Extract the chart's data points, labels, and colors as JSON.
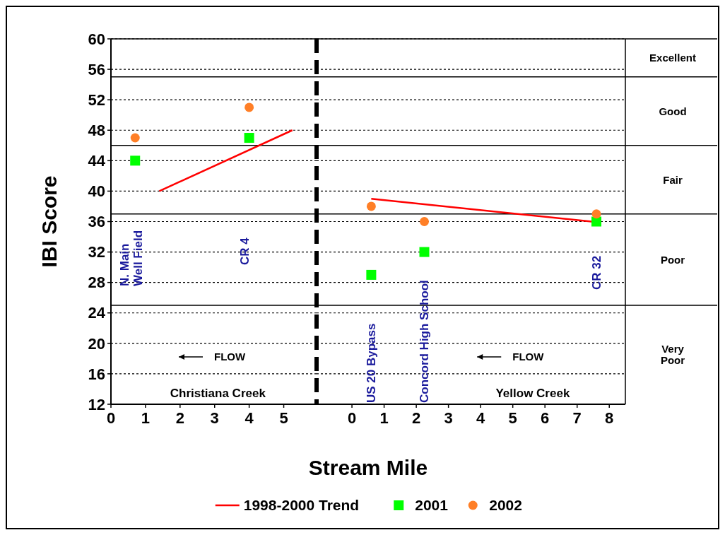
{
  "chart_data": [
    {
      "type": "scatter",
      "xlabel": "Stream Mile",
      "ylabel": "IBI Score",
      "xlim": [
        0,
        5.95
      ],
      "xticks": [
        0,
        1,
        2,
        3,
        4,
        5
      ],
      "ylim": [
        12,
        60
      ],
      "yticks": [
        12,
        16,
        20,
        24,
        28,
        32,
        36,
        40,
        44,
        48,
        52,
        56,
        60
      ],
      "grid": "y",
      "legend": "bottom",
      "series": [
        {
          "name": "1998-2000 Trend",
          "type": "line",
          "color": "#ff0000",
          "x": [
            1.4,
            5.25
          ],
          "values": [
            40,
            48
          ],
          "marker": "none",
          "line_style": "solid"
        },
        {
          "name": "2001",
          "color": "#00ff00",
          "x": [
            0.7,
            4.0
          ],
          "values": [
            44,
            47
          ],
          "marker": "square"
        },
        {
          "name": "2002",
          "color": "#ff7f27",
          "x": [
            0.7,
            4.0
          ],
          "values": [
            47,
            51
          ],
          "marker": "circle"
        }
      ],
      "ref_lines": [
        {
          "axis": "y",
          "value": 55
        },
        {
          "axis": "y",
          "value": 46
        },
        {
          "axis": "y",
          "value": 37
        },
        {
          "axis": "y",
          "value": 25
        }
      ],
      "annotations": [
        "FLOW",
        "Christiana Creek",
        "N. Main\nWell Field",
        "CR 4"
      ]
    },
    {
      "type": "scatter",
      "xlim": [
        -1.1,
        8.5
      ],
      "xticks": [
        0,
        1,
        2,
        3,
        4,
        5,
        6,
        7,
        8
      ],
      "ylim": [
        12,
        60
      ],
      "yticks": [
        12,
        16,
        20,
        24,
        28,
        32,
        36,
        40,
        44,
        48,
        52,
        56,
        60
      ],
      "grid": "y",
      "tick_labels": "x",
      "series": [
        {
          "type": "line",
          "color": "#ff0000",
          "x": [
            0.6,
            7.45
          ],
          "values": [
            39,
            36
          ],
          "marker": "none",
          "line_style": "solid"
        },
        {
          "color": "#00ff00",
          "x": [
            0.6,
            2.25,
            7.6
          ],
          "values": [
            29,
            32,
            36
          ],
          "marker": "square"
        },
        {
          "color": "#ff7f27",
          "x": [
            0.6,
            2.25,
            7.6
          ],
          "values": [
            38,
            36,
            37
          ],
          "marker": "circle"
        }
      ],
      "ref_lines": [
        {
          "axis": "y",
          "value": 55
        },
        {
          "axis": "y",
          "value": 46
        },
        {
          "axis": "y",
          "value": 37
        },
        {
          "axis": "y",
          "value": 25
        }
      ],
      "annotations": [
        "FLOW",
        "Yellow Creek",
        "US 20 Bypass",
        "Concord High School",
        "CR 32",
        "Excellent",
        "Good",
        "Fair",
        "Poor",
        "Very Poor"
      ]
    }
  ]
}
